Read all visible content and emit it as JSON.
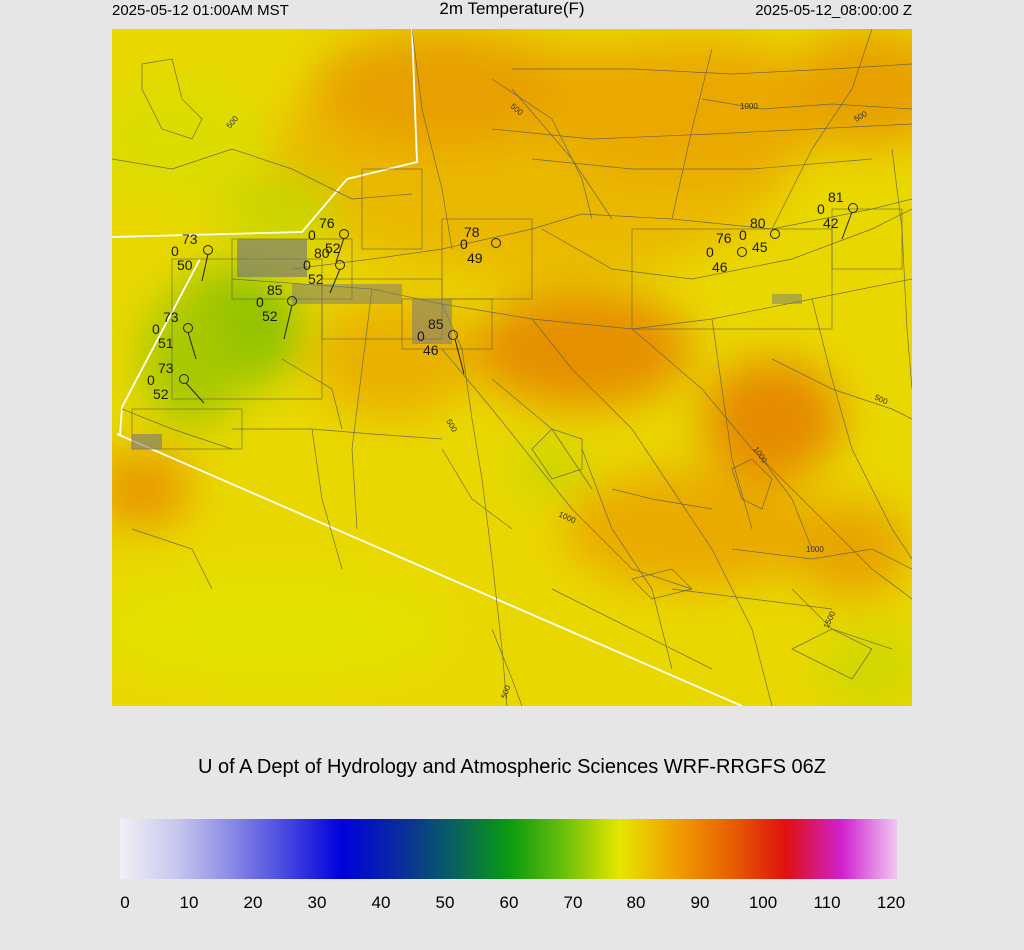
{
  "header": {
    "local_time": "2025-05-12 01:00AM MST",
    "title": "2m Temperature(F)",
    "utc_time": "2025-05-12_08:00:00 Z"
  },
  "credit": "U of A Dept of Hydrology and Atmospheric Sciences WRF-RRGFS 06Z",
  "colorbar": {
    "ticks": [
      "0",
      "10",
      "20",
      "30",
      "40",
      "50",
      "60",
      "70",
      "80",
      "90",
      "100",
      "110",
      "120"
    ],
    "colors": [
      "#f0f0f5",
      "#c8c8ee",
      "#8a8ae6",
      "#4646e0",
      "#0000dc",
      "#0a2aa0",
      "#086060",
      "#0a9a10",
      "#6abf0a",
      "#e6e600",
      "#f0a000",
      "#e66000",
      "#e01010",
      "#d020d0",
      "#f0c8f0"
    ]
  },
  "contour_labels": [
    "500",
    "500",
    "1000",
    "500",
    "500",
    "1000",
    "1000",
    "1000",
    "1500",
    "500",
    "500"
  ],
  "stations": [
    {
      "temp": "73",
      "wind": "0",
      "dew": "50"
    },
    {
      "temp": "76",
      "wind": "0",
      "dew": "52"
    },
    {
      "temp": "80",
      "wind": "0",
      "dew": "52"
    },
    {
      "temp": "85",
      "wind": "0",
      "dew": "52"
    },
    {
      "temp": "73",
      "wind": "0",
      "dew": "51"
    },
    {
      "temp": "73",
      "wind": "0",
      "dew": "52"
    },
    {
      "temp": "78",
      "wind": "0",
      "dew": "49"
    },
    {
      "temp": "85",
      "wind": "0",
      "dew": "46"
    },
    {
      "temp": "76",
      "wind": "0",
      "dew": "46"
    },
    {
      "temp": "80",
      "wind": "0",
      "dew": "45"
    },
    {
      "temp": "81",
      "wind": "0",
      "dew": "42"
    }
  ]
}
